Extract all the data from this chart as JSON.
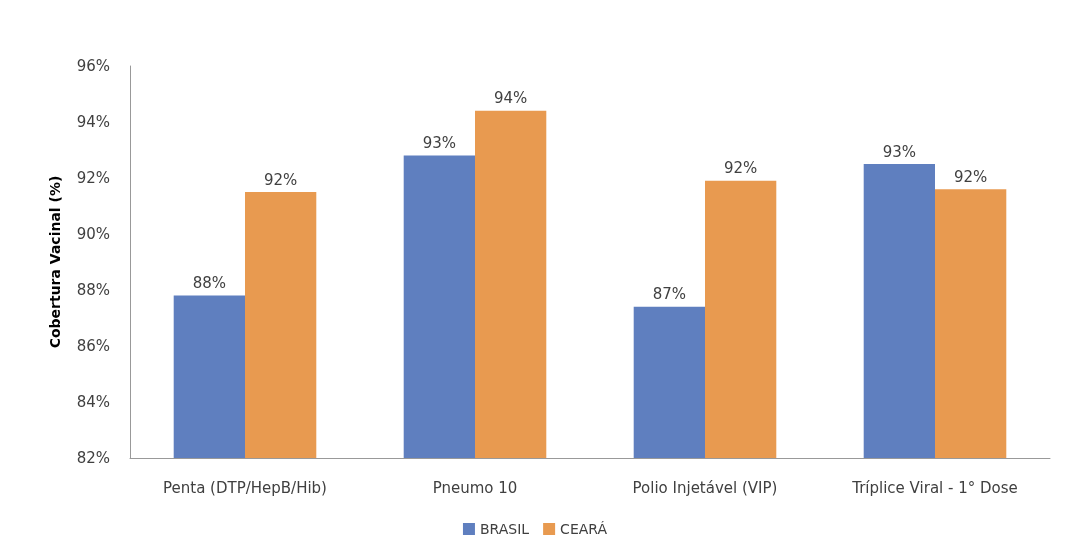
{
  "chart_data": {
    "type": "bar",
    "ylabel": "Cobertura Vacinal (%)",
    "categories": [
      "Penta (DTP/HepB/Hib)",
      "Pneumo 10",
      "Polio Injetável (VIP)",
      "Tríplice Viral - 1° Dose"
    ],
    "series": [
      {
        "name": "BRASIL",
        "color": "#5f7fbf",
        "values": [
          87.8,
          92.8,
          87.4,
          92.5
        ],
        "value_labels": [
          "88%",
          "93%",
          "87%",
          "93%"
        ]
      },
      {
        "name": "CEARÁ",
        "color": "#e89a50",
        "values": [
          91.5,
          94.4,
          91.9,
          91.6
        ],
        "value_labels": [
          "92%",
          "94%",
          "92%",
          "92%"
        ]
      }
    ],
    "ylim": [
      82,
      96
    ],
    "yticks": [
      {
        "value": 82,
        "label": "82%"
      },
      {
        "value": 84,
        "label": "84%"
      },
      {
        "value": 86,
        "label": "86%"
      },
      {
        "value": 88,
        "label": "88%"
      },
      {
        "value": 90,
        "label": "90%"
      },
      {
        "value": 92,
        "label": "92%"
      },
      {
        "value": 94,
        "label": "94%"
      },
      {
        "value": 96,
        "label": "96%"
      }
    ],
    "grid": false,
    "legend": "bottom"
  }
}
